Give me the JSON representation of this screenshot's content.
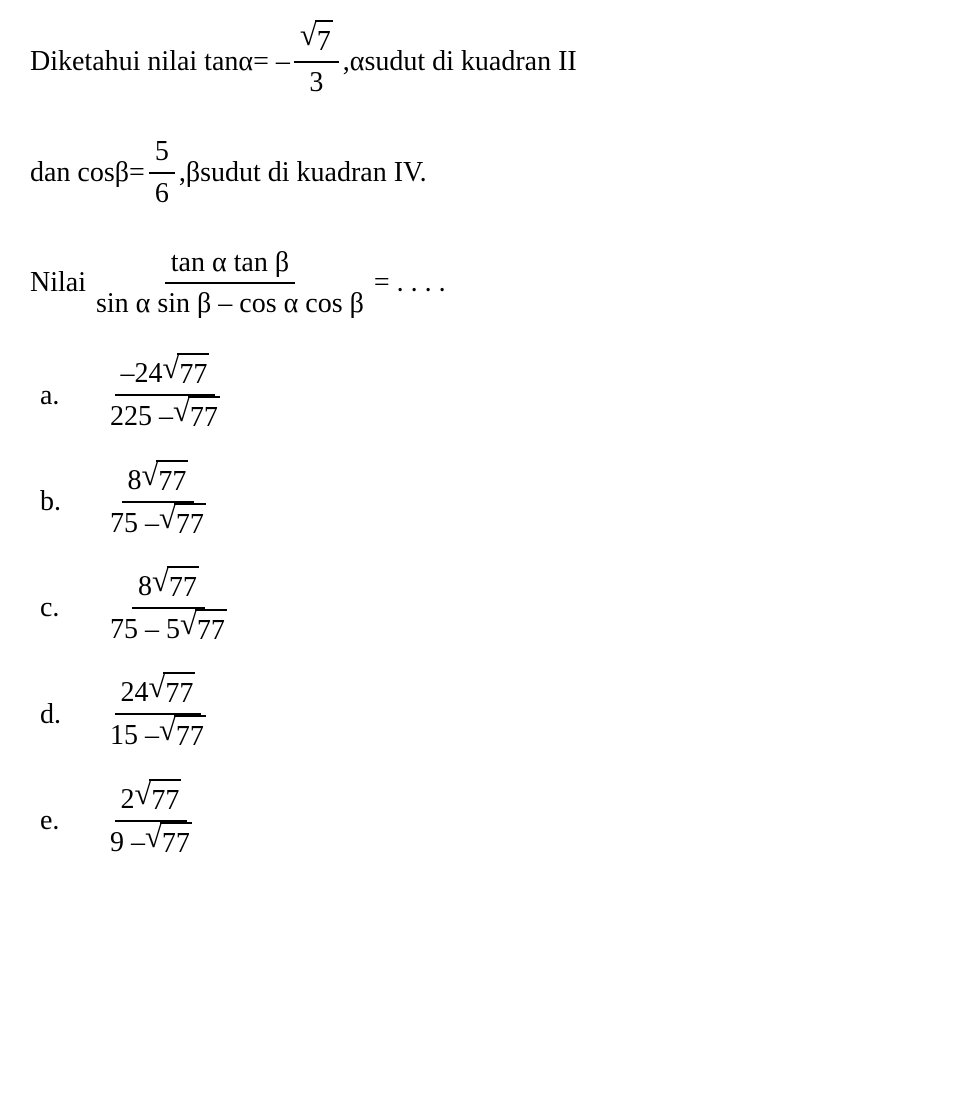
{
  "problem": {
    "line1_part1": "Diketahui nilai tan ",
    "alpha": "α",
    "equals_neg": " = – ",
    "frac1_num_sqrt": "7",
    "frac1_den": "3",
    "line1_part2": ", ",
    "line1_part3": " sudut di kuadran II",
    "line2_part1": "dan  cos  ",
    "beta": "β",
    "equals": "  =  ",
    "frac2_num": "5",
    "frac2_den": "6",
    "line2_part2": ",  ",
    "line2_part3": "  sudut  di  kuadran  IV.",
    "line3_part1": "Nilai  ",
    "frac3_num": "tan α tan β",
    "frac3_den": "sin α sin β – cos α cos β",
    "line3_part2": "  =  . . . .",
    "options": {
      "a": {
        "label": "a.",
        "num_prefix": "–24",
        "num_sqrt": "77",
        "den_prefix": "225 – ",
        "den_sqrt": "77"
      },
      "b": {
        "label": "b.",
        "num_prefix": "8",
        "num_sqrt": "77",
        "den_prefix": "75 – ",
        "den_sqrt": "77"
      },
      "c": {
        "label": "c.",
        "num_prefix": "8",
        "num_sqrt": "77",
        "den_prefix": "75 – 5",
        "den_sqrt": "77"
      },
      "d": {
        "label": "d.",
        "num_prefix": "24",
        "num_sqrt": "77",
        "den_prefix": "15 – ",
        "den_sqrt": "77"
      },
      "e": {
        "label": "e.",
        "num_prefix": "2",
        "num_sqrt": "77",
        "den_prefix": "9 – ",
        "den_sqrt": "77"
      }
    }
  },
  "style": {
    "font_family": "Times New Roman",
    "font_size_pt": 21,
    "text_color": "#000000",
    "background_color": "#ffffff",
    "fraction_bar_color": "#000000",
    "fraction_bar_width": 2
  }
}
